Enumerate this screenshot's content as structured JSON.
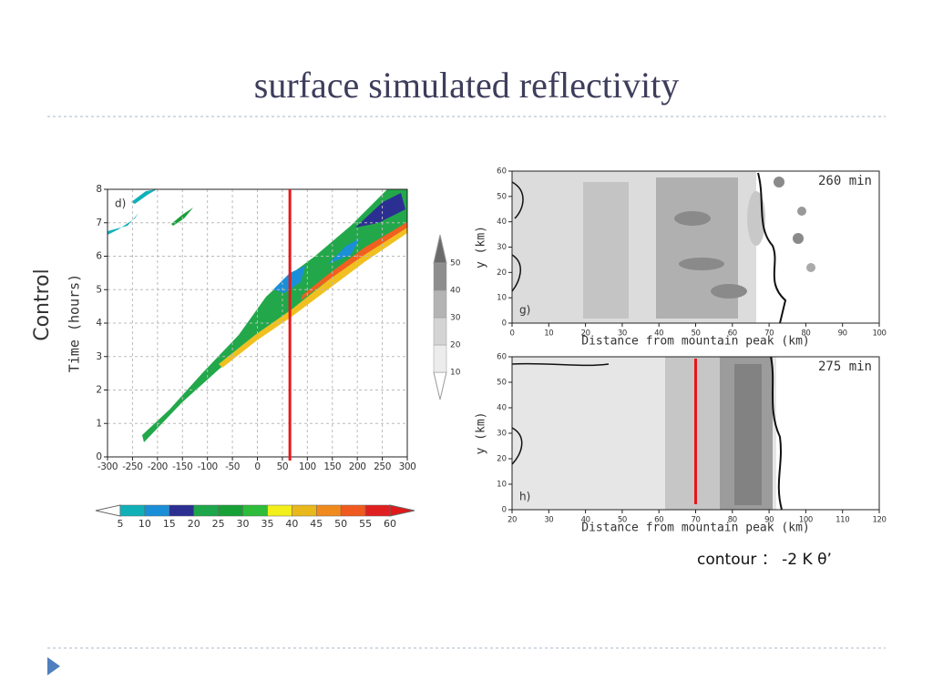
{
  "title": "surface simulated reflectivity",
  "caption": "contour ： -2 K θ’",
  "chart_data": [
    {
      "type": "heatmap",
      "panel_label": "d)",
      "row_label": "Control",
      "ylabel": "Time (hours)",
      "xlim": [
        -300,
        300
      ],
      "xticks": [
        -300,
        -250,
        -200,
        -150,
        -100,
        -50,
        0,
        50,
        100,
        150,
        200,
        250,
        300
      ],
      "ylim": [
        0,
        8
      ],
      "yticks": [
        0,
        1,
        2,
        3,
        4,
        5,
        6,
        7,
        8
      ],
      "grid": true,
      "marker_x": 65,
      "marker_color": "#e8161b",
      "colorbar": {
        "orientation": "horizontal",
        "levels": [
          5,
          10,
          15,
          20,
          25,
          30,
          35,
          40,
          45,
          50,
          55,
          60
        ],
        "colors": [
          "#10b0b8",
          "#1a8fd8",
          "#2c2f92",
          "#1ea64a",
          "#16a035",
          "#2dbd3a",
          "#f2ef1a",
          "#e8b81c",
          "#f08a1e",
          "#f05a1e",
          "#e02020"
        ],
        "under_color": "#ffffff",
        "over_color": "#e01818"
      }
    },
    {
      "type": "heatmap",
      "panel_label": "g)",
      "time_label": "260 min",
      "ylabel": "y (km)",
      "xlabel": "Distance from mountain peak (km)",
      "xlim": [
        0,
        100
      ],
      "xticks": [
        0,
        10,
        20,
        30,
        40,
        50,
        60,
        70,
        80,
        90,
        100
      ],
      "ylim": [
        0,
        60
      ],
      "yticks": [
        0,
        10,
        20,
        30,
        40,
        50,
        60
      ],
      "grid": false,
      "colorbar": {
        "orientation": "vertical",
        "levels": [
          10,
          20,
          30,
          40,
          50
        ],
        "colors": [
          "#ececec",
          "#d4d4d4",
          "#b4b4b4",
          "#8e8e8e"
        ],
        "under_color": "#ffffff",
        "over_color": "#6a6a6a"
      }
    },
    {
      "type": "heatmap",
      "panel_label": "h)",
      "time_label": "275 min",
      "ylabel": "y (km)",
      "xlabel": "Distance from mountain peak (km)",
      "xlim": [
        20,
        120
      ],
      "xticks": [
        20,
        30,
        40,
        50,
        60,
        70,
        80,
        90,
        100,
        110,
        120
      ],
      "ylim": [
        0,
        60
      ],
      "yticks": [
        0,
        10,
        20,
        30,
        40,
        50,
        60
      ],
      "grid": false,
      "marker_x": 70,
      "marker_color": "#e8161b"
    }
  ]
}
